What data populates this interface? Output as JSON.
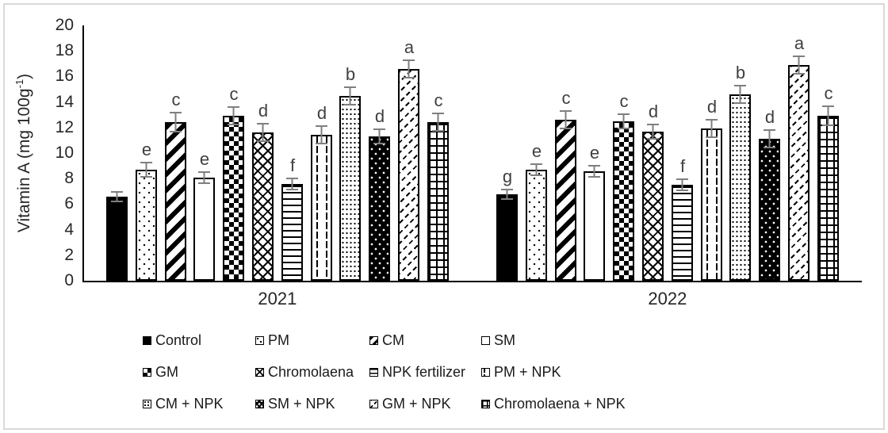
{
  "chart_data": {
    "type": "bar",
    "title": "",
    "xlabel": "",
    "ylabel": "Vitamin A (mg 100g⁻¹)",
    "ylabel_parts": {
      "prefix": "Vitamin A (mg 100g",
      "superscript": "-1",
      "suffix": ")"
    },
    "ylim": [
      0,
      20
    ],
    "yticks": [
      0,
      2,
      4,
      6,
      8,
      10,
      12,
      14,
      16,
      18,
      20
    ],
    "grid": false,
    "legend_position": "bottom",
    "error_bars": true,
    "annotation_style": "significance-letters",
    "categories": [
      "2021",
      "2022"
    ],
    "series": [
      {
        "name": "Control",
        "pattern": "solid",
        "values": [
          6.6,
          6.8
        ],
        "errors": [
          0.3,
          0.3
        ],
        "letters": [
          "",
          "g"
        ]
      },
      {
        "name": "PM",
        "pattern": "dots",
        "values": [
          8.7,
          8.7
        ],
        "errors": [
          0.5,
          0.4
        ],
        "letters": [
          "e",
          "e"
        ]
      },
      {
        "name": "CM",
        "pattern": "diag",
        "values": [
          12.4,
          12.6
        ],
        "errors": [
          0.7,
          0.6
        ],
        "letters": [
          "c",
          "c"
        ]
      },
      {
        "name": "SM",
        "pattern": "white",
        "values": [
          8.1,
          8.6
        ],
        "errors": [
          0.4,
          0.4
        ],
        "letters": [
          "e",
          "e"
        ]
      },
      {
        "name": "GM",
        "pattern": "checker",
        "values": [
          12.9,
          12.5
        ],
        "errors": [
          0.6,
          0.5
        ],
        "letters": [
          "c",
          "c"
        ]
      },
      {
        "name": "Chromolaena",
        "pattern": "diamond",
        "values": [
          11.6,
          11.7
        ],
        "errors": [
          0.6,
          0.5
        ],
        "letters": [
          "d",
          "d"
        ]
      },
      {
        "name": "NPK fertilizer",
        "pattern": "hlines",
        "values": [
          7.6,
          7.5
        ],
        "errors": [
          0.4,
          0.4
        ],
        "letters": [
          "f",
          "f"
        ]
      },
      {
        "name": "PM + NPK",
        "pattern": "vdash",
        "values": [
          11.4,
          11.9
        ],
        "errors": [
          0.6,
          0.6
        ],
        "letters": [
          "d",
          "d"
        ]
      },
      {
        "name": "CM + NPK",
        "pattern": "dotsdense",
        "values": [
          14.5,
          14.6
        ],
        "errors": [
          0.6,
          0.6
        ],
        "letters": [
          "b",
          "b"
        ]
      },
      {
        "name": "SM + NPK",
        "pattern": "blackdots",
        "values": [
          11.3,
          11.1
        ],
        "errors": [
          0.5,
          0.6
        ],
        "letters": [
          "d",
          "d"
        ]
      },
      {
        "name": "GM + NPK",
        "pattern": "diagdash",
        "values": [
          16.6,
          16.9
        ],
        "errors": [
          0.6,
          0.6
        ],
        "letters": [
          "a",
          "a"
        ]
      },
      {
        "name": "Chromolaena + NPK",
        "pattern": "grid",
        "values": [
          12.4,
          12.9
        ],
        "errors": [
          0.6,
          0.7
        ],
        "letters": [
          "c",
          "c"
        ]
      }
    ]
  },
  "colors": {
    "bar_fill": "#000000",
    "bar_background": "#ffffff",
    "error_bar": "#7f7f7f",
    "letter_text": "#3f3f3f",
    "axis_line": "#000000",
    "tick_text": "#262626",
    "frame_border": "#d9d9d9"
  }
}
